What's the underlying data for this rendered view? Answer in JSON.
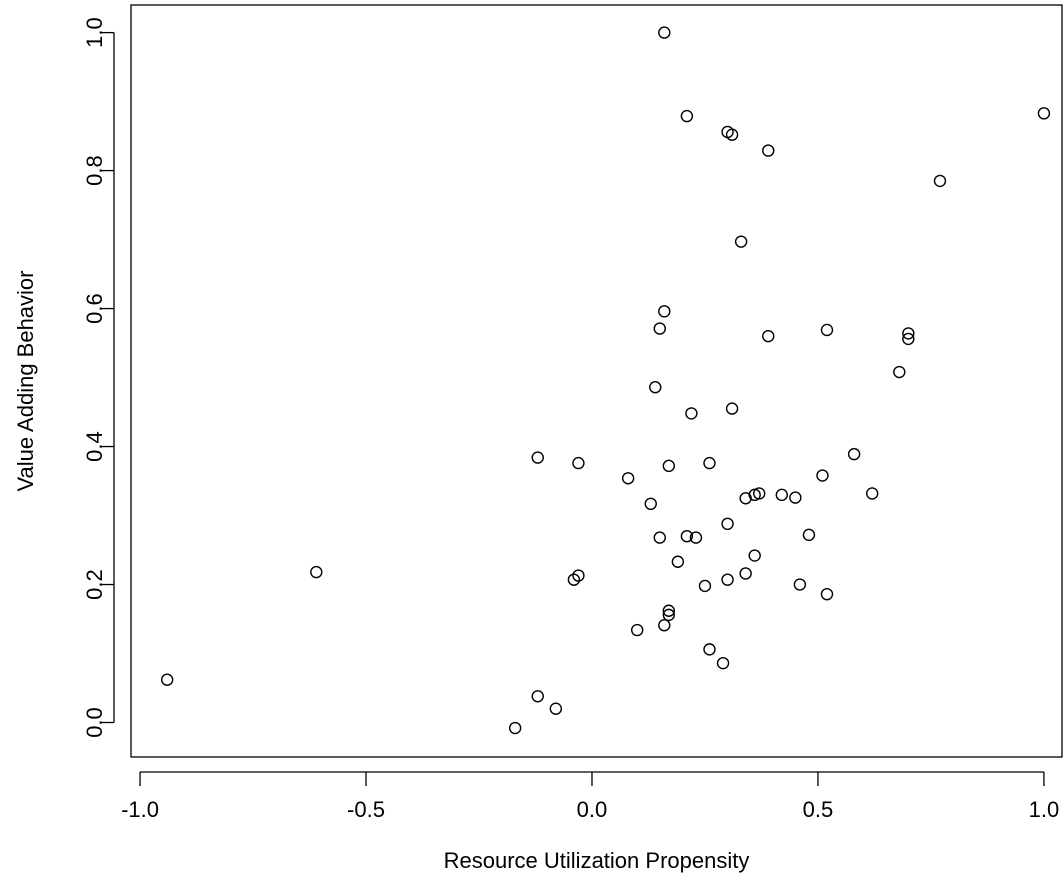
{
  "chart_data": {
    "type": "scatter",
    "title": "",
    "xlabel": "Resource Utilization Propensity",
    "ylabel": "Value Adding Behavior",
    "xlim": [
      -1.02,
      1.04
    ],
    "ylim": [
      -0.05,
      1.04
    ],
    "grid": false,
    "legend": "none",
    "x_ticks": [
      -1.0,
      -0.5,
      0.0,
      0.5,
      1.0
    ],
    "x_tick_labels": [
      "-1.0",
      "-0.5",
      "0.0",
      "0.5",
      "1.0"
    ],
    "y_ticks": [
      0.0,
      0.2,
      0.4,
      0.6,
      0.8,
      1.0
    ],
    "y_tick_labels": [
      "0.0",
      "0.2",
      "0.4",
      "0.6",
      "0.8",
      "1.0"
    ],
    "marker": "open-circle",
    "colors": {
      "marker": "#000000",
      "axis": "#000000",
      "background": "#ffffff"
    },
    "points": [
      {
        "x": 0.16,
        "y": 1.0
      },
      {
        "x": 1.0,
        "y": 0.883
      },
      {
        "x": 0.21,
        "y": 0.879
      },
      {
        "x": 0.3,
        "y": 0.856
      },
      {
        "x": 0.31,
        "y": 0.852
      },
      {
        "x": 0.39,
        "y": 0.829
      },
      {
        "x": 0.77,
        "y": 0.785
      },
      {
        "x": 0.33,
        "y": 0.697
      },
      {
        "x": 0.16,
        "y": 0.596
      },
      {
        "x": 0.15,
        "y": 0.571
      },
      {
        "x": 0.52,
        "y": 0.569
      },
      {
        "x": 0.7,
        "y": 0.564
      },
      {
        "x": 0.7,
        "y": 0.556
      },
      {
        "x": 0.39,
        "y": 0.56
      },
      {
        "x": 0.68,
        "y": 0.508
      },
      {
        "x": 0.14,
        "y": 0.486
      },
      {
        "x": 0.31,
        "y": 0.455
      },
      {
        "x": 0.22,
        "y": 0.448
      },
      {
        "x": 0.58,
        "y": 0.389
      },
      {
        "x": -0.12,
        "y": 0.384
      },
      {
        "x": -0.03,
        "y": 0.376
      },
      {
        "x": 0.26,
        "y": 0.376
      },
      {
        "x": 0.17,
        "y": 0.372
      },
      {
        "x": 0.51,
        "y": 0.358
      },
      {
        "x": 0.08,
        "y": 0.354
      },
      {
        "x": 0.62,
        "y": 0.332
      },
      {
        "x": 0.37,
        "y": 0.332
      },
      {
        "x": 0.36,
        "y": 0.33
      },
      {
        "x": 0.42,
        "y": 0.33
      },
      {
        "x": 0.45,
        "y": 0.326
      },
      {
        "x": 0.34,
        "y": 0.325
      },
      {
        "x": 0.13,
        "y": 0.317
      },
      {
        "x": 0.3,
        "y": 0.288
      },
      {
        "x": 0.48,
        "y": 0.272
      },
      {
        "x": 0.21,
        "y": 0.27
      },
      {
        "x": 0.15,
        "y": 0.268
      },
      {
        "x": 0.23,
        "y": 0.268
      },
      {
        "x": 0.36,
        "y": 0.242
      },
      {
        "x": 0.19,
        "y": 0.233
      },
      {
        "x": -0.61,
        "y": 0.218
      },
      {
        "x": 0.34,
        "y": 0.216
      },
      {
        "x": -0.03,
        "y": 0.213
      },
      {
        "x": -0.04,
        "y": 0.207
      },
      {
        "x": 0.3,
        "y": 0.207
      },
      {
        "x": 0.25,
        "y": 0.198
      },
      {
        "x": 0.46,
        "y": 0.2
      },
      {
        "x": 0.52,
        "y": 0.186
      },
      {
        "x": 0.17,
        "y": 0.162
      },
      {
        "x": 0.17,
        "y": 0.156
      },
      {
        "x": 0.16,
        "y": 0.141
      },
      {
        "x": 0.1,
        "y": 0.134
      },
      {
        "x": 0.26,
        "y": 0.106
      },
      {
        "x": 0.29,
        "y": 0.086
      },
      {
        "x": -0.94,
        "y": 0.062
      },
      {
        "x": -0.12,
        "y": 0.038
      },
      {
        "x": -0.08,
        "y": 0.02
      },
      {
        "x": -0.17,
        "y": -0.008
      }
    ]
  }
}
